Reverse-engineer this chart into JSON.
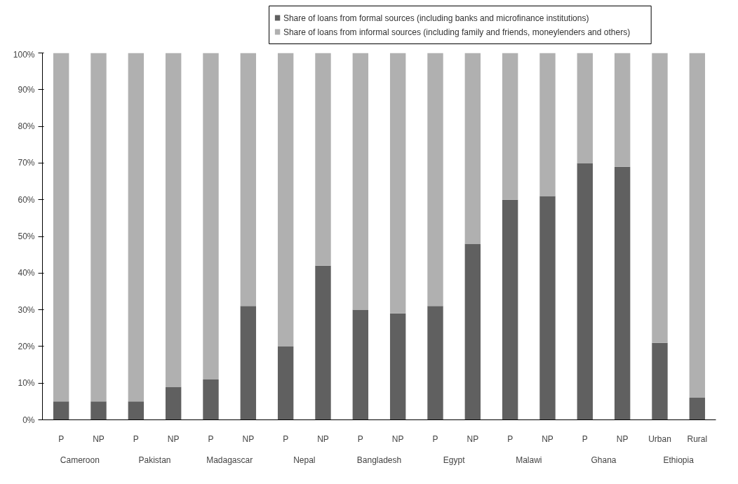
{
  "chart_data": {
    "type": "bar",
    "stacked": true,
    "categories": [
      "P",
      "NP",
      "P",
      "NP",
      "P",
      "NP",
      "P",
      "NP",
      "P",
      "NP",
      "P",
      "NP",
      "P",
      "NP",
      "P",
      "NP",
      "Urban",
      "Rural"
    ],
    "annotations": [
      "Cameroon",
      "Pakistan",
      "Madagascar",
      "Nepal",
      "Bangladesh",
      "Egypt",
      "Malawi",
      "Ghana",
      "Ethiopia"
    ],
    "series": [
      {
        "name": "Share of loans from formal sources (including banks and microfinance institutions)",
        "color": "#606060",
        "values": [
          5,
          5,
          5,
          9,
          11,
          31,
          20,
          42,
          30,
          29,
          31,
          48,
          60,
          61,
          70,
          69,
          21,
          6
        ]
      },
      {
        "name": "Share of loans from informal sources (including family and friends, moneylenders and others)",
        "color": "#b0b0b0",
        "values": [
          95,
          95,
          95,
          91,
          89,
          69,
          80,
          58,
          70,
          71,
          69,
          52,
          40,
          39,
          30,
          31,
          79,
          94
        ]
      }
    ],
    "ylim": [
      0,
      100
    ],
    "yticks": [
      {
        "value": 0,
        "label": "0%"
      },
      {
        "value": 10,
        "label": "10%"
      },
      {
        "value": 20,
        "label": "20%"
      },
      {
        "value": 30,
        "label": "30%"
      },
      {
        "value": 40,
        "label": "40%"
      },
      {
        "value": 50,
        "label": "50%"
      },
      {
        "value": 60,
        "label": "60%"
      },
      {
        "value": 70,
        "label": "70%"
      },
      {
        "value": 80,
        "label": "80%"
      },
      {
        "value": 90,
        "label": "90%"
      },
      {
        "value": 100,
        "label": "100%"
      }
    ],
    "grid": false,
    "legend": "top"
  }
}
